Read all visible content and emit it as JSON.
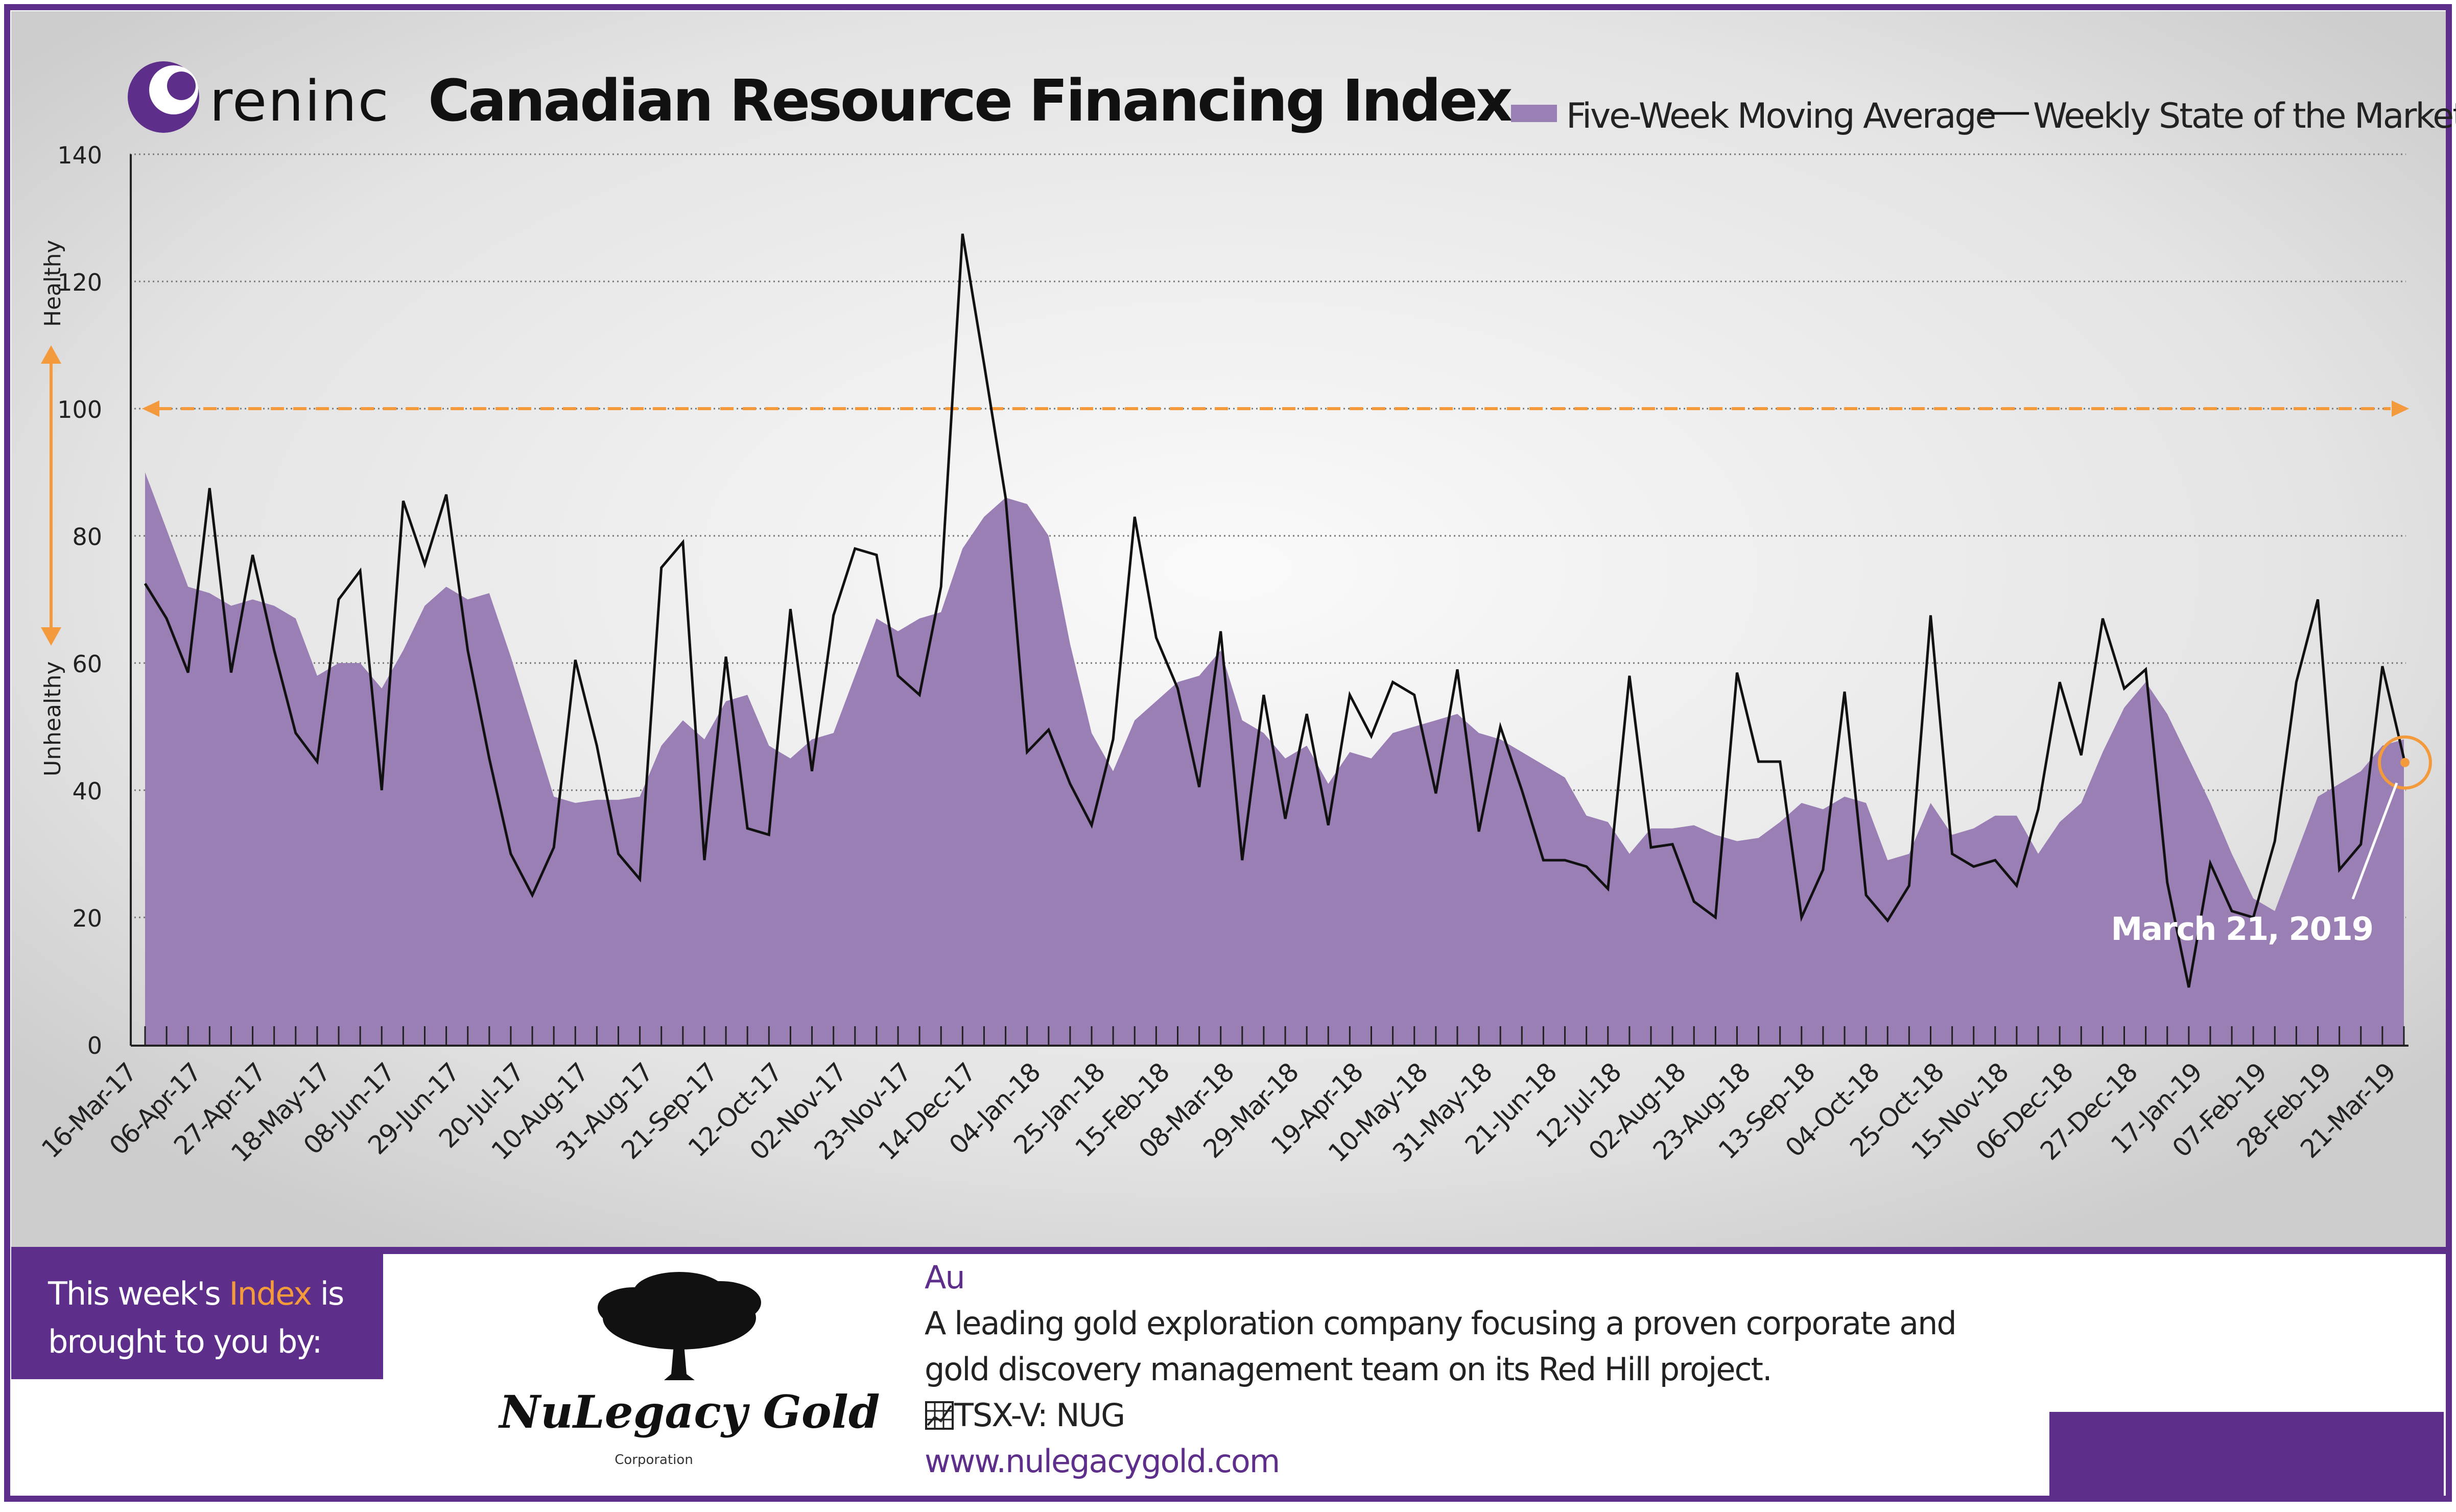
{
  "header": {
    "brand": "reninc",
    "title": "Canadian Resource Financing Index"
  },
  "colors": {
    "area": "#9a7fb5",
    "line": "#111111",
    "threshold": "#f39a3c",
    "frame": "#5d2e8a",
    "background_center": "#fafafa",
    "background_edge": "#cfcfcf"
  },
  "chart_data": {
    "type": "area",
    "y_axis": {
      "ylim": [
        0,
        140
      ],
      "ticks": [
        "0",
        "20",
        "40",
        "60",
        "80",
        "100",
        "120",
        "140"
      ],
      "label_top": "Healthy",
      "label_bottom": "Unhealthy"
    },
    "x_tick_labels": [
      "16-Mar-17",
      "06-Apr-17",
      "27-Apr-17",
      "18-May-17",
      "08-Jun-17",
      "29-Jun-17",
      "20-Jul-17",
      "10-Aug-17",
      "31-Aug-17",
      "21-Sep-17",
      "12-Oct-17",
      "02-Nov-17",
      "23-Nov-17",
      "14-Dec-17",
      "04-Jan-18",
      "25-Jan-18",
      "15-Feb-18",
      "08-Mar-18",
      "29-Mar-18",
      "19-Apr-18",
      "10-May-18",
      "31-May-18",
      "21-Jun-18",
      "12-Jul-18",
      "02-Aug-18",
      "23-Aug-18",
      "13-Sep-18",
      "04-Oct-18",
      "25-Oct-18",
      "15-Nov-18",
      "06-Dec-18",
      "27-Dec-18",
      "17-Jan-19",
      "07-Feb-19",
      "28-Feb-19",
      "21-Mar-19"
    ],
    "grid": true,
    "legend": {
      "position": "top-right",
      "area_label": "Five-Week Moving Average",
      "line_label": "Weekly State of the Market"
    },
    "series": [
      {
        "name": "Five-Week Moving Average",
        "kind": "area",
        "values": [
          90,
          81,
          72,
          71,
          69,
          70,
          69,
          67,
          58,
          60,
          60,
          56,
          62,
          69,
          72,
          70,
          71,
          61,
          50,
          39,
          38,
          38.5,
          38.5,
          39,
          47,
          51,
          48,
          54,
          55,
          47,
          45,
          48,
          49,
          58,
          67,
          65,
          67,
          68,
          78,
          83,
          86,
          85,
          80,
          63,
          49,
          43,
          51,
          54,
          57,
          58,
          62,
          51,
          49,
          45,
          47,
          41,
          46,
          45,
          49,
          50,
          51,
          52,
          49,
          48,
          46,
          44,
          42,
          36,
          35,
          30,
          34,
          34,
          34.5,
          33,
          32,
          32.5,
          35,
          38,
          37,
          39,
          38,
          29,
          30,
          38,
          33,
          34,
          36,
          36,
          30,
          35,
          38,
          46,
          53,
          57,
          52,
          45,
          38,
          30,
          23,
          21,
          30,
          39,
          41,
          43,
          47,
          48
        ]
      },
      {
        "name": "Weekly State of the Market",
        "kind": "line",
        "values": [
          72.5,
          67,
          58.5,
          87.5,
          58.5,
          77,
          62,
          49,
          44.5,
          70,
          74.5,
          40,
          85.5,
          75.5,
          86.5,
          62,
          45,
          30,
          23.5,
          31,
          60.5,
          47,
          30,
          26,
          75,
          79,
          29,
          61,
          34,
          33,
          68.5,
          43,
          67.5,
          78,
          77,
          58,
          55,
          72,
          127.5,
          107,
          86,
          46,
          49.5,
          41,
          34.5,
          48,
          83,
          64,
          56,
          40.5,
          65,
          29,
          55,
          35.5,
          52,
          34.5,
          55,
          48.5,
          57,
          55,
          39.5,
          59,
          33.5,
          50,
          40,
          29,
          29,
          28,
          24.5,
          58,
          31,
          31.5,
          22.5,
          20,
          58.5,
          44.5,
          44.5,
          20,
          27.5,
          55.5,
          23.5,
          19.5,
          25,
          67.5,
          30,
          28,
          29,
          25,
          37,
          57,
          45.5,
          67,
          56,
          59,
          25.5,
          9,
          28.5,
          21,
          20,
          32,
          57,
          70,
          27.5,
          31.5,
          59.5,
          45
        ]
      }
    ],
    "threshold": 100,
    "annotation": "March 21, 2019"
  },
  "sponsor": {
    "line1_pre": "This week's ",
    "line1_highlight": "Index",
    "line1_post": " is",
    "line2": "brought to you by:",
    "logo_name": "NuLegacy Gold",
    "logo_sub": "Corporation"
  },
  "company": {
    "symbol": "Au",
    "desc1": "A leading gold exploration company focusing a proven corporate and",
    "desc2": "gold discovery management team on its Red Hill project.",
    "ticker": "TSX-V:  NUG",
    "ticker_icon": "chart-icon",
    "url": "www.nulegacygold.com"
  }
}
